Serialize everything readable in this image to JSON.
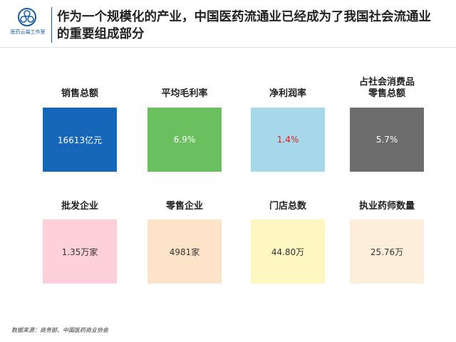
{
  "header": {
    "logo": "医药云端工作室",
    "title": "作为一个规模化的产业，中国医药流通业已经成为了我国社会流通业的重要组成部分"
  },
  "cards": [
    {
      "label": "销售总额",
      "value": "16613亿元"
    },
    {
      "label": "平均毛利率",
      "value": "6.9%"
    },
    {
      "label": "净利润率",
      "value": "1.4%"
    },
    {
      "label": "占社会消费品零售总额",
      "value": "5.7%"
    },
    {
      "label": "批发企业",
      "value": "1.35万家"
    },
    {
      "label": "零售企业",
      "value": "4981家"
    },
    {
      "label": "门店总数",
      "value": "44.80万"
    },
    {
      "label": "执业药师数量",
      "value": "25.76万"
    }
  ],
  "source": "数据来源：商务部、中国医药商业协会"
}
